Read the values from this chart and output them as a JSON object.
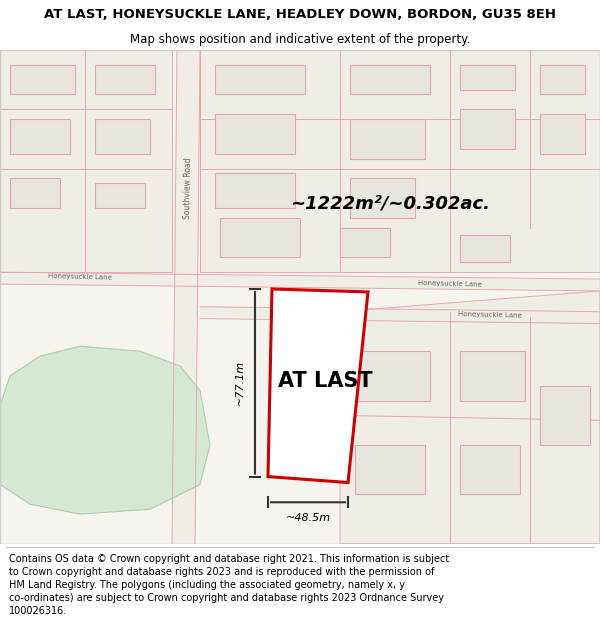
{
  "title": "AT LAST, HONEYSUCKLE LANE, HEADLEY DOWN, BORDON, GU35 8EH",
  "subtitle": "Map shows position and indicative extent of the property.",
  "footer": "Contains OS data © Crown copyright and database right 2021. This information is subject\nto Crown copyright and database rights 2023 and is reproduced with the permission of\nHM Land Registry. The polygons (including the associated geometry, namely x, y\nco-ordinates) are subject to Crown copyright and database rights 2023 Ordnance Survey\n100026316.",
  "map_bg": "#f7f4f0",
  "building_fill": "#e8e4de",
  "building_stroke": "#e8a8a8",
  "road_fill": "#f0ece6",
  "green_fill": "#d4e8d4",
  "green_stroke": "#b0ccb0",
  "highlight_fill": "#ffffff",
  "highlight_stroke": "#cc0000",
  "label_property": "AT LAST",
  "area_label": "~1222m²/~0.302ac.",
  "dim_width": "~48.5m",
  "dim_height": "~77.1m",
  "title_fontsize": 9.5,
  "subtitle_fontsize": 8.5,
  "footer_fontsize": 7.0,
  "map_border_color": "#cccccc"
}
